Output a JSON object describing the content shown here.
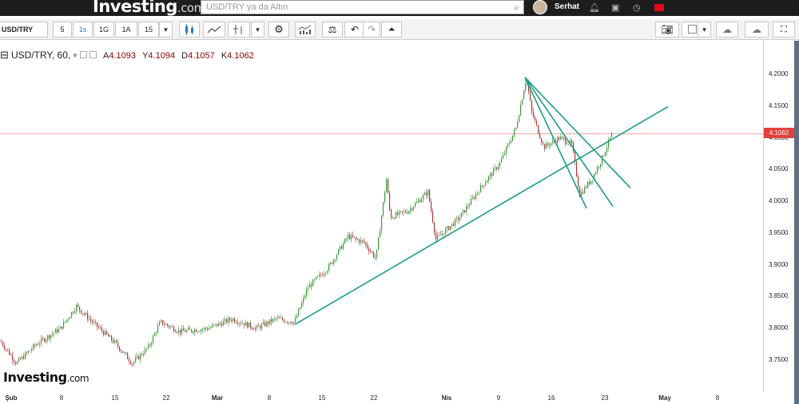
{
  "header": {
    "logo_brand": "Investing",
    "logo_suffix": ".com",
    "search_placeholder": "USD/TRY ya da Altın",
    "user_name": "Serhat"
  },
  "toolbar": {
    "symbol": "USD/TRY",
    "intervals": [
      "5",
      "1s",
      "1G",
      "1A",
      "15"
    ],
    "active_interval": "1s"
  },
  "legend": {
    "title": "USD/TRY, 60,",
    "open_label": "A",
    "open": "4.1093",
    "high_label": "Y",
    "high": "4.1094",
    "low_label": "D",
    "low": "4.1057",
    "close_label": "K",
    "close": "4.1062"
  },
  "chart_data": {
    "type": "candlestick",
    "symbol": "USD/TRY",
    "interval": "60",
    "last_price": "4.1062",
    "y_ticks": [
      "4.2000",
      "4.1500",
      "4.1000",
      "4.0500",
      "4.0000",
      "3.9500",
      "3.9000",
      "3.8500",
      "3.8000",
      "3.7500"
    ],
    "x_ticks": [
      "Şub",
      "8",
      "15",
      "22",
      "Mar",
      "8",
      "15",
      "22",
      "Nis",
      "9",
      "16",
      "23",
      "May",
      "8"
    ],
    "ylim": [
      3.715,
      4.23
    ],
    "price_path_approx": [
      [
        0,
        3.78
      ],
      [
        20,
        3.745
      ],
      [
        45,
        3.775
      ],
      [
        75,
        3.8
      ],
      [
        95,
        3.835
      ],
      [
        115,
        3.81
      ],
      [
        145,
        3.775
      ],
      [
        165,
        3.745
      ],
      [
        185,
        3.77
      ],
      [
        200,
        3.81
      ],
      [
        225,
        3.795
      ],
      [
        260,
        3.8
      ],
      [
        290,
        3.815
      ],
      [
        320,
        3.8
      ],
      [
        345,
        3.815
      ],
      [
        368,
        3.81
      ],
      [
        385,
        3.865
      ],
      [
        410,
        3.895
      ],
      [
        435,
        3.945
      ],
      [
        455,
        3.935
      ],
      [
        470,
        3.91
      ],
      [
        483,
        4.035
      ],
      [
        488,
        3.975
      ],
      [
        510,
        3.985
      ],
      [
        535,
        4.015
      ],
      [
        545,
        3.94
      ],
      [
        575,
        3.975
      ],
      [
        600,
        4.02
      ],
      [
        625,
        4.06
      ],
      [
        645,
        4.115
      ],
      [
        658,
        4.195
      ],
      [
        665,
        4.14
      ],
      [
        680,
        4.085
      ],
      [
        700,
        4.1
      ],
      [
        715,
        4.09
      ],
      [
        725,
        4.01
      ],
      [
        740,
        4.035
      ],
      [
        752,
        4.065
      ],
      [
        765,
        4.105
      ]
    ],
    "trendlines": [
      {
        "x1": 369,
        "y1": 3.806,
        "x2": 836,
        "y2": 4.149
      },
      {
        "x1": 657,
        "y1": 4.195,
        "x2": 734,
        "y2": 3.989
      },
      {
        "x1": 657,
        "y1": 4.195,
        "x2": 767,
        "y2": 3.992
      },
      {
        "x1": 657,
        "y1": 4.195,
        "x2": 789,
        "y2": 4.021
      }
    ]
  },
  "watermark": {
    "brand": "Investing",
    "suffix": ".com"
  }
}
